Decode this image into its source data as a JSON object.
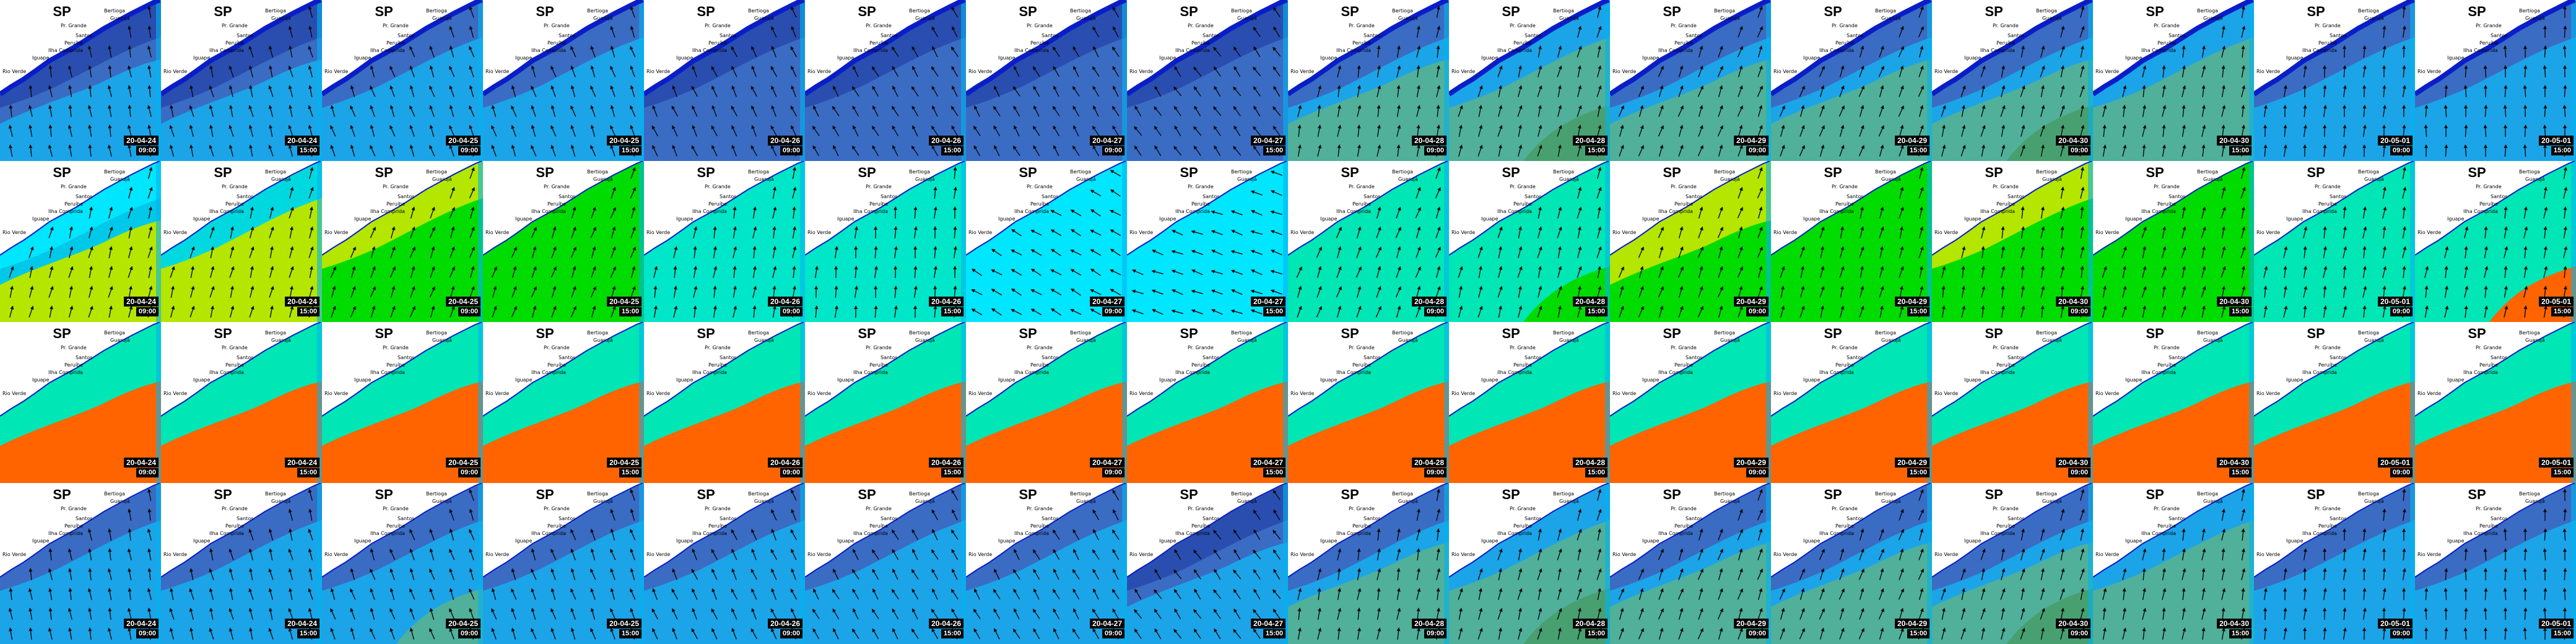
{
  "map": {
    "region_title": "SP",
    "places": [
      "Bertioga",
      "Guarujá",
      "Pr. Grande",
      "Santos",
      "Peruíbe",
      "Ilha Comprida",
      "Iguape",
      "Rio Verde"
    ]
  },
  "colors": {
    "land": "#ffffff",
    "coast_band": "#0a1ec8",
    "outside_strip": "#00b4f0",
    "arrow": "#0a0a0a",
    "timestamp_box": "#000000"
  },
  "frames": [
    {
      "date": "20-04-24",
      "time": "09:00"
    },
    {
      "date": "20-04-24",
      "time": "15:00"
    },
    {
      "date": "20-04-25",
      "time": "09:00"
    },
    {
      "date": "20-04-25",
      "time": "15:00"
    },
    {
      "date": "20-04-26",
      "time": "09:00"
    },
    {
      "date": "20-04-26",
      "time": "15:00"
    },
    {
      "date": "20-04-27",
      "time": "09:00"
    },
    {
      "date": "20-04-27",
      "time": "15:00"
    },
    {
      "date": "20-04-28",
      "time": "09:00"
    },
    {
      "date": "20-04-28",
      "time": "15:00"
    },
    {
      "date": "20-04-29",
      "time": "09:00"
    },
    {
      "date": "20-04-29",
      "time": "15:00"
    },
    {
      "date": "20-04-30",
      "time": "09:00"
    },
    {
      "date": "20-04-30",
      "time": "15:00"
    },
    {
      "date": "20-05-01",
      "time": "09:00"
    },
    {
      "date": "20-05-01",
      "time": "15:00"
    }
  ],
  "rows": [
    {
      "variable": "row-1",
      "arrows": true,
      "panels": [
        {
          "base": "#3a6cc4",
          "near": "#2a4eb0",
          "far": "#1ca4e8",
          "far2": "#1ca4e8",
          "dir": 350
        },
        {
          "base": "#3a6cc4",
          "near": "#2a4eb0",
          "far": "#1ca4e8",
          "far2": "#1ca4e8",
          "dir": 345
        },
        {
          "base": "#1ca4e8",
          "near": "#3a6cc4",
          "far": "#1ca4e8",
          "far2": "#1ca4e8",
          "dir": 340
        },
        {
          "base": "#1ca4e8",
          "near": "#3a6cc4",
          "far": "#1ca4e8",
          "far2": "#1ca4e8",
          "dir": 340
        },
        {
          "base": "#3a6cc4",
          "near": "#2a4eb0",
          "far": "#3a6cc4",
          "far2": "#3a6cc4",
          "dir": 335
        },
        {
          "base": "#3a6cc4",
          "near": "#2a4eb0",
          "far": "#3a6cc4",
          "far2": "#3a6cc4",
          "dir": 330
        },
        {
          "base": "#3a6cc4",
          "near": "#2a4eb0",
          "far": "#3a6cc4",
          "far2": "#3a6cc4",
          "dir": 330
        },
        {
          "base": "#3a6cc4",
          "near": "#2a4eb0",
          "far": "#3a6cc4",
          "far2": "#3a6cc4",
          "dir": 325
        },
        {
          "base": "#1ca4e8",
          "near": "#3a6cc4",
          "far": "#50b09a",
          "far2": "#50b09a",
          "dir": 10
        },
        {
          "base": "#50b09a",
          "near": "#1ca4e8",
          "far": "#50b09a",
          "far2": "#48a070",
          "dir": 15
        },
        {
          "base": "#1ca4e8",
          "near": "#3a6cc4",
          "far": "#50b09a",
          "far2": "#50b09a",
          "dir": 20
        },
        {
          "base": "#1ca4e8",
          "near": "#3a6cc4",
          "far": "#50b09a",
          "far2": "#50b09a",
          "dir": 20
        },
        {
          "base": "#1ca4e8",
          "near": "#3a6cc4",
          "far": "#50b09a",
          "far2": "#48a070",
          "dir": 15
        },
        {
          "base": "#50b09a",
          "near": "#1ca4e8",
          "far": "#50b09a",
          "far2": "#50b09a",
          "dir": 10
        },
        {
          "base": "#1ca4e8",
          "near": "#3a6cc4",
          "far": "#1ca4e8",
          "far2": "#1ca4e8",
          "dir": 5
        },
        {
          "base": "#1ca4e8",
          "near": "#3a6cc4",
          "far": "#1ca4e8",
          "far2": "#1ca4e8",
          "dir": 0
        }
      ]
    },
    {
      "variable": "row-2",
      "arrows": true,
      "panels": [
        {
          "base": "#00c8e8",
          "near": "#00e6ff",
          "far": "#b4e600",
          "far2": "#b4e600",
          "dir": 15
        },
        {
          "base": "#b4e600",
          "near": "#00d8e0",
          "far": "#b4e600",
          "far2": "#b4e600",
          "dir": 15
        },
        {
          "base": "#00dc00",
          "near": "#b4e600",
          "far": "#00dc00",
          "far2": "#00dc00",
          "dir": 20
        },
        {
          "base": "#00dc00",
          "near": "#00dc00",
          "far": "#00dc00",
          "far2": "#00dc00",
          "dir": 20
        },
        {
          "base": "#00e6c8",
          "near": "#00e6c8",
          "far": "#00e6c8",
          "far2": "#00e6c8",
          "dir": 10
        },
        {
          "base": "#00e6c8",
          "near": "#00e6c8",
          "far": "#00e6c8",
          "far2": "#00e6c8",
          "dir": 5
        },
        {
          "base": "#00e6ff",
          "near": "#00e6ff",
          "far": "#00e6ff",
          "far2": "#00e6ff",
          "dir": 300
        },
        {
          "base": "#00e6ff",
          "near": "#00e6ff",
          "far": "#00e6ff",
          "far2": "#00e6ff",
          "dir": 290
        },
        {
          "base": "#00e6b4",
          "near": "#00e6b4",
          "far": "#00e6b4",
          "far2": "#00e6b4",
          "dir": 20
        },
        {
          "base": "#00e6b4",
          "near": "#00e6b4",
          "far": "#00e6b4",
          "far2": "#00dc00",
          "dir": 15
        },
        {
          "base": "#b4e600",
          "near": "#b4e600",
          "far": "#00dc00",
          "far2": "#00dc00",
          "dir": 20
        },
        {
          "base": "#00dc00",
          "near": "#00dc00",
          "far": "#00dc00",
          "far2": "#00dc00",
          "dir": 15
        },
        {
          "base": "#00dc00",
          "near": "#b4e600",
          "far": "#00dc00",
          "far2": "#00dc00",
          "dir": 10
        },
        {
          "base": "#00dc00",
          "near": "#00dc00",
          "far": "#00dc00",
          "far2": "#00dc00",
          "dir": 15
        },
        {
          "base": "#00e6b4",
          "near": "#00e6b4",
          "far": "#00e6b4",
          "far2": "#00e6b4",
          "dir": 10
        },
        {
          "base": "#00e6b4",
          "near": "#00e6b4",
          "far": "#00e6b4",
          "far2": "#ff6400",
          "dir": 10
        }
      ]
    },
    {
      "variable": "row-3",
      "arrows": false,
      "panels": [
        {
          "base": "#00e6b4",
          "near": "#00e6b4",
          "far": "#ff6400",
          "far2": "#ff6400",
          "dir": 0
        },
        {
          "base": "#00e6b4",
          "near": "#00e6b4",
          "far": "#ff6400",
          "far2": "#ff6400",
          "dir": 0
        },
        {
          "base": "#00e6b4",
          "near": "#00e6b4",
          "far": "#ff6400",
          "far2": "#ff6400",
          "dir": 0
        },
        {
          "base": "#00e6b4",
          "near": "#00e6b4",
          "far": "#ff6400",
          "far2": "#ff6400",
          "dir": 0
        },
        {
          "base": "#00e6b4",
          "near": "#00e6b4",
          "far": "#ff6400",
          "far2": "#ff6400",
          "dir": 0
        },
        {
          "base": "#00e6b4",
          "near": "#00e6b4",
          "far": "#ff6400",
          "far2": "#ff6400",
          "dir": 0
        },
        {
          "base": "#00e6b4",
          "near": "#00e6b4",
          "far": "#ff6400",
          "far2": "#ff6400",
          "dir": 0
        },
        {
          "base": "#00e6b4",
          "near": "#00e6b4",
          "far": "#ff6400",
          "far2": "#ff6400",
          "dir": 0
        },
        {
          "base": "#00e6b4",
          "near": "#00e6b4",
          "far": "#ff6400",
          "far2": "#ff6400",
          "dir": 0
        },
        {
          "base": "#00e6b4",
          "near": "#00e6b4",
          "far": "#ff6400",
          "far2": "#ff6400",
          "dir": 0
        },
        {
          "base": "#00e6b4",
          "near": "#00e6b4",
          "far": "#ff6400",
          "far2": "#ff6400",
          "dir": 0
        },
        {
          "base": "#00e6b4",
          "near": "#00e6b4",
          "far": "#ff6400",
          "far2": "#ff6400",
          "dir": 0
        },
        {
          "base": "#00e6b4",
          "near": "#00e6b4",
          "far": "#ff6400",
          "far2": "#ff6400",
          "dir": 0
        },
        {
          "base": "#00e6b4",
          "near": "#00e6b4",
          "far": "#ff6400",
          "far2": "#ff6400",
          "dir": 0
        },
        {
          "base": "#00e6b4",
          "near": "#00e6b4",
          "far": "#ff6400",
          "far2": "#ff6400",
          "dir": 0
        },
        {
          "base": "#00e6b4",
          "near": "#00e6b4",
          "far": "#ff6400",
          "far2": "#ff6400",
          "dir": 0
        }
      ]
    },
    {
      "variable": "row-4",
      "arrows": true,
      "panels": [
        {
          "base": "#1ca4e8",
          "near": "#3a6cc4",
          "far": "#1ca4e8",
          "far2": "#1ca4e8",
          "dir": 350
        },
        {
          "base": "#1ca4e8",
          "near": "#3a6cc4",
          "far": "#1ca4e8",
          "far2": "#1ca4e8",
          "dir": 345
        },
        {
          "base": "#1ca4e8",
          "near": "#3a6cc4",
          "far": "#1ca4e8",
          "far2": "#50b09a",
          "dir": 340
        },
        {
          "base": "#1ca4e8",
          "near": "#3a6cc4",
          "far": "#1ca4e8",
          "far2": "#1ca4e8",
          "dir": 340
        },
        {
          "base": "#1ca4e8",
          "near": "#3a6cc4",
          "far": "#1ca4e8",
          "far2": "#1ca4e8",
          "dir": 335
        },
        {
          "base": "#1ca4e8",
          "near": "#3a6cc4",
          "far": "#1ca4e8",
          "far2": "#1ca4e8",
          "dir": 330
        },
        {
          "base": "#1ca4e8",
          "near": "#3a6cc4",
          "far": "#1ca4e8",
          "far2": "#1ca4e8",
          "dir": 330
        },
        {
          "base": "#3a6cc4",
          "near": "#2a4eb0",
          "far": "#1ca4e8",
          "far2": "#1ca4e8",
          "dir": 325
        },
        {
          "base": "#1ca4e8",
          "near": "#3a6cc4",
          "far": "#50b09a",
          "far2": "#50b09a",
          "dir": 10
        },
        {
          "base": "#50b09a",
          "near": "#1ca4e8",
          "far": "#50b09a",
          "far2": "#48a070",
          "dir": 15
        },
        {
          "base": "#1ca4e8",
          "near": "#3a6cc4",
          "far": "#50b09a",
          "far2": "#50b09a",
          "dir": 20
        },
        {
          "base": "#1ca4e8",
          "near": "#3a6cc4",
          "far": "#50b09a",
          "far2": "#50b09a",
          "dir": 20
        },
        {
          "base": "#1ca4e8",
          "near": "#3a6cc4",
          "far": "#50b09a",
          "far2": "#48a070",
          "dir": 15
        },
        {
          "base": "#50b09a",
          "near": "#1ca4e8",
          "far": "#50b09a",
          "far2": "#50b09a",
          "dir": 10
        },
        {
          "base": "#1ca4e8",
          "near": "#3a6cc4",
          "far": "#1ca4e8",
          "far2": "#1ca4e8",
          "dir": 5
        },
        {
          "base": "#1ca4e8",
          "near": "#3a6cc4",
          "far": "#1ca4e8",
          "far2": "#1ca4e8",
          "dir": 0
        }
      ]
    }
  ]
}
